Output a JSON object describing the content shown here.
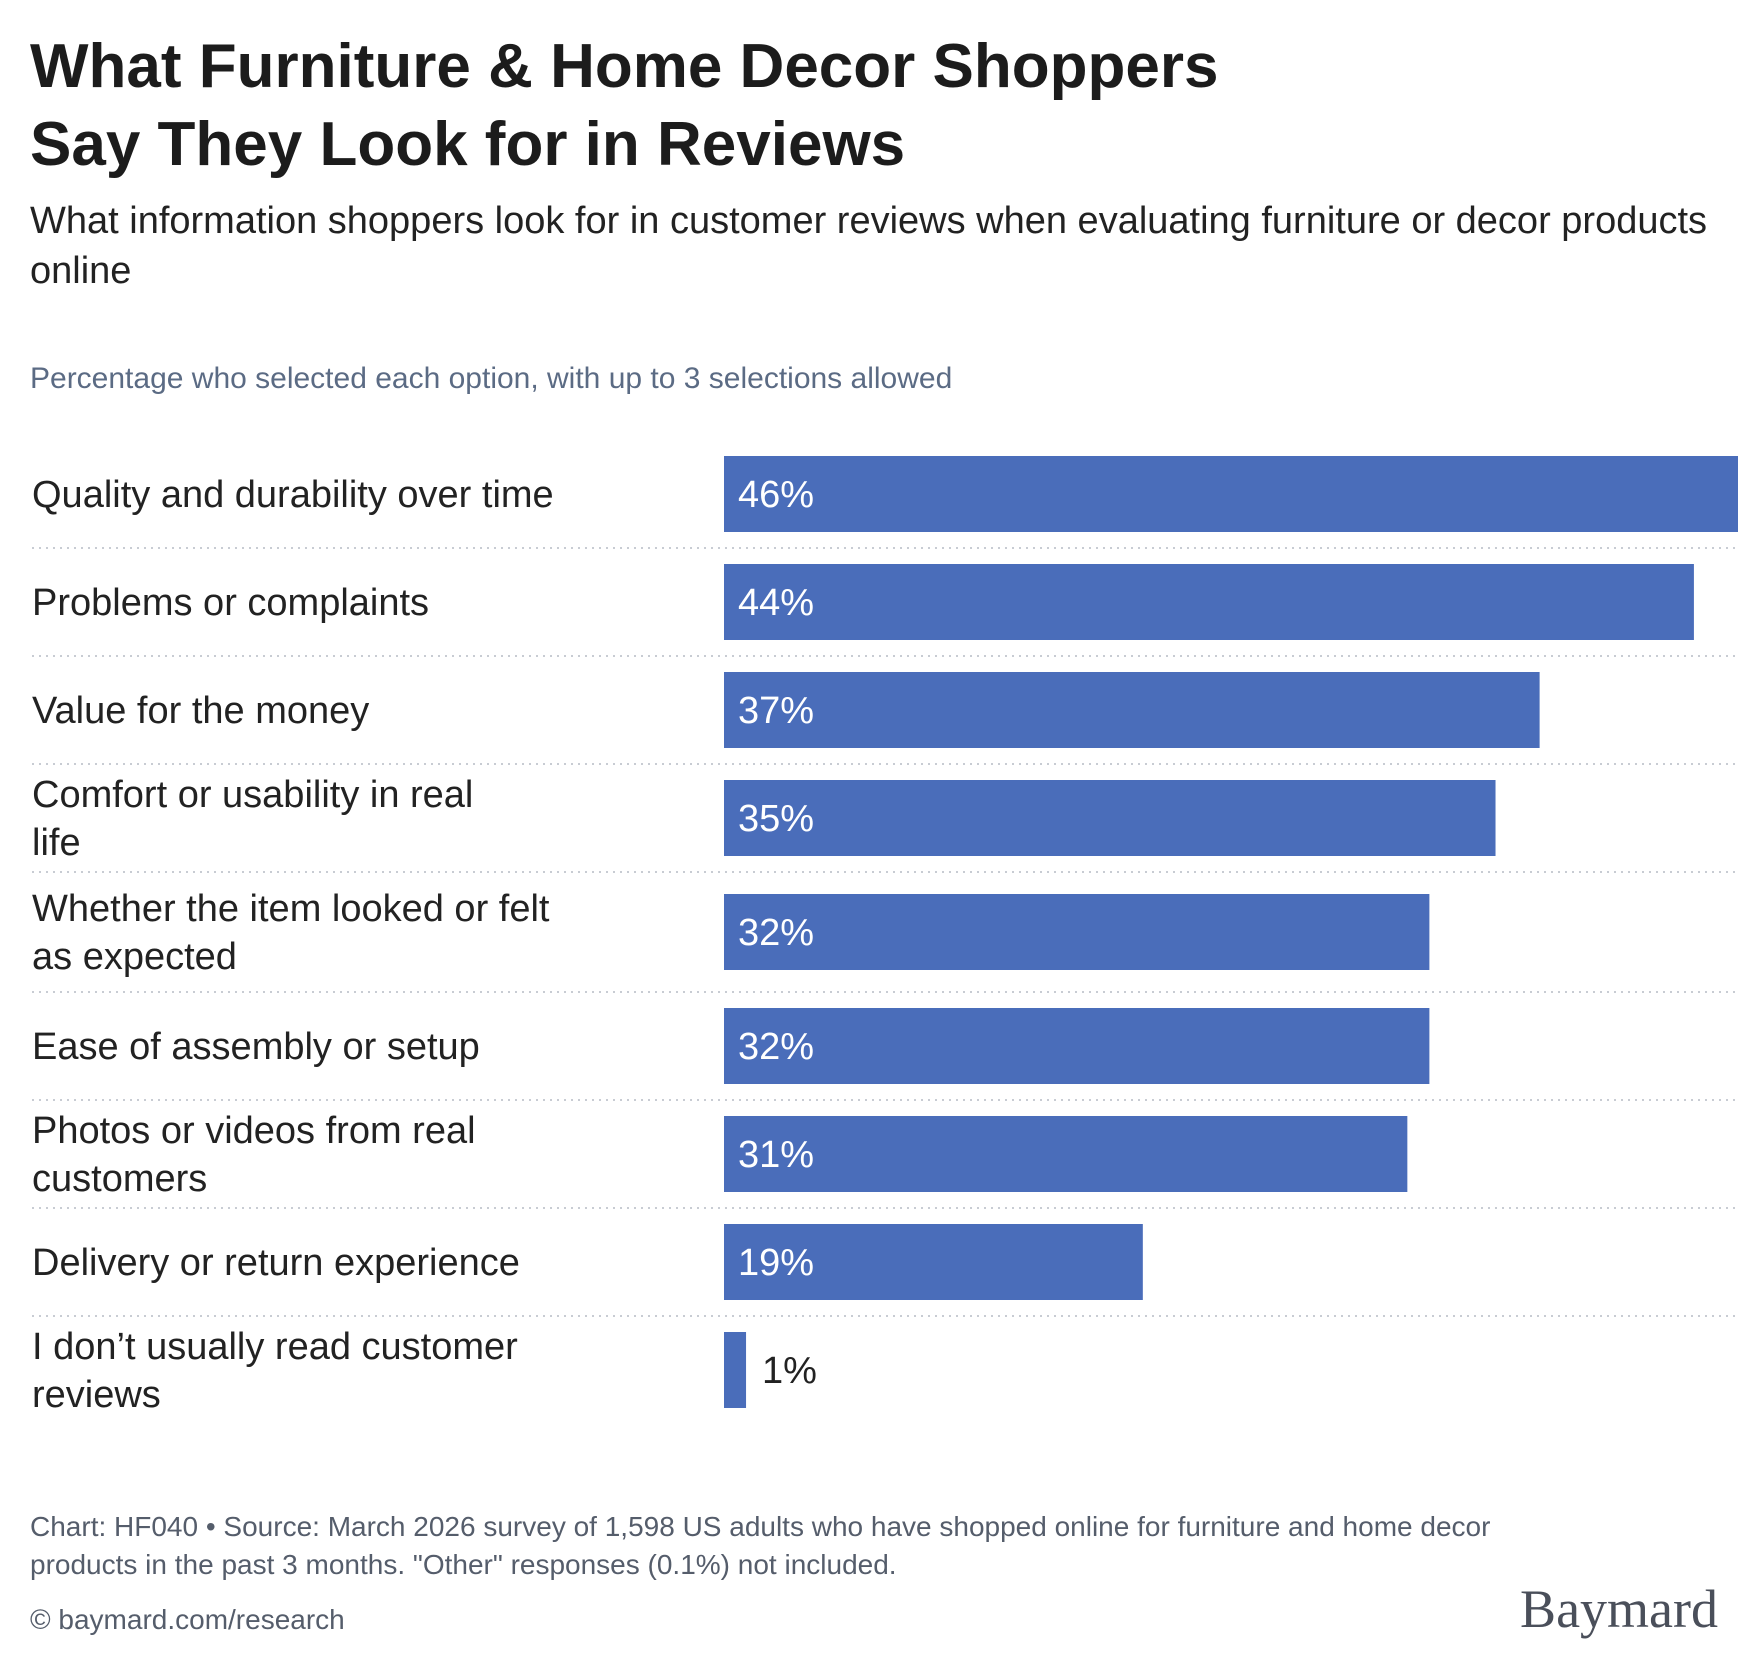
{
  "header": {
    "title_line1": "What Furniture & Home Decor Shoppers",
    "title_line2": "Say They Look for in Reviews",
    "subtitle": "What information shoppers look for in customer reviews when evaluating furniture or decor products online",
    "note": "Percentage who selected each option, with up to 3 selections allowed"
  },
  "chart_data": {
    "type": "bar",
    "orientation": "horizontal",
    "categories": [
      "Quality and durability over time",
      "Problems or complaints",
      "Value for the money",
      "Comfort or usability in real life",
      "Whether the item looked or felt as expected",
      "Ease of assembly or setup",
      "Photos or videos from real customers",
      "Delivery or return experience",
      "I don’t usually read customer reviews"
    ],
    "values": [
      46,
      44,
      37,
      35,
      32,
      32,
      31,
      19,
      1
    ],
    "value_labels": [
      "46%",
      "44%",
      "37%",
      "35%",
      "32%",
      "32%",
      "31%",
      "19%",
      "1%"
    ],
    "bar_color": "#4a6dba",
    "grid": false,
    "row_dividers": "dotted"
  },
  "footer": {
    "source": "Chart: HF040 • Source: March 2026 survey of 1,598 US adults who have shopped online for furniture and home decor products in the past 3 months. \"Other\" responses (0.1%) not included.",
    "url": "© baymard.com/research",
    "logo_text": "Baymard"
  }
}
